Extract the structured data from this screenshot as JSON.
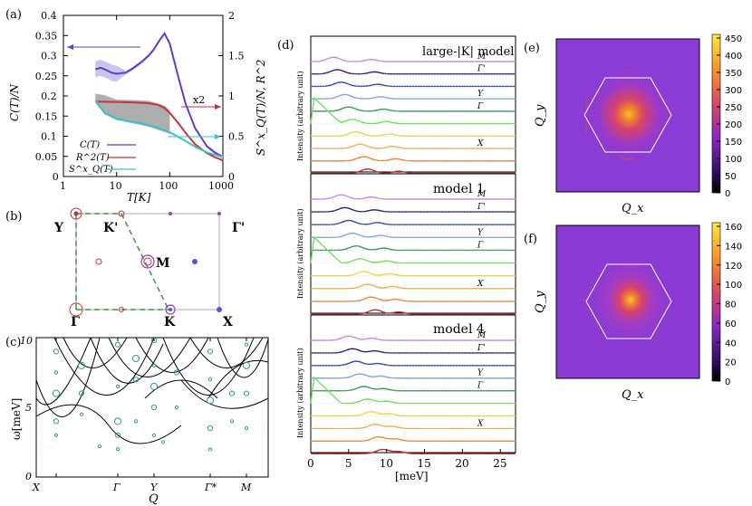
{
  "panel_labels": [
    "(a)",
    "(b)",
    "(c)",
    "(d)",
    "(e)",
    "(f)"
  ],
  "chart_data": [
    {
      "id": "a",
      "type": "line",
      "title": "",
      "xlabel": "T[K]",
      "ylabel_left": "C(T)/N",
      "ylabel_right": "S^x_Q(T)/N, R^2",
      "xscale": "log",
      "xlim": [
        1,
        1000
      ],
      "ylim_left": [
        0,
        0.4
      ],
      "ylim_right": [
        0,
        2
      ],
      "xticks": [
        "1",
        "10",
        "100",
        "1000"
      ],
      "yticks_left": [
        "0",
        "0.05",
        "0.1",
        "0.15",
        "0.2",
        "0.25",
        "0.3",
        "0.35",
        "0.4"
      ],
      "yticks_right": [
        "0",
        "0.5",
        "1",
        "1.5",
        "2"
      ],
      "annotation": "x2",
      "legend": [
        "C(T)",
        "R^2(T)",
        "S^x_Q(T)"
      ],
      "colors": {
        "C": "#5a3fd0",
        "R2": "#c8323c",
        "S": "#3cc2c8",
        "band": "#a0a0a0"
      },
      "series": [
        {
          "name": "C(T)",
          "axis": "left",
          "x": [
            4,
            5,
            6,
            8,
            10,
            15,
            20,
            30,
            40,
            50,
            60,
            70,
            80,
            100,
            150,
            200,
            300,
            500,
            700,
            1000
          ],
          "values": [
            0.266,
            0.27,
            0.266,
            0.258,
            0.255,
            0.258,
            0.268,
            0.285,
            0.3,
            0.315,
            0.332,
            0.345,
            0.355,
            0.33,
            0.24,
            0.18,
            0.12,
            0.075,
            0.06,
            0.048
          ]
        },
        {
          "name": "R^2(T)",
          "axis": "right",
          "x": [
            4,
            10,
            20,
            40,
            60,
            80,
            100,
            150,
            200,
            300,
            500,
            700,
            1000
          ],
          "values": [
            0.93,
            0.925,
            0.92,
            0.91,
            0.89,
            0.85,
            0.79,
            0.65,
            0.54,
            0.4,
            0.29,
            0.24,
            0.2
          ]
        },
        {
          "name": "S^x_Q(T)",
          "axis": "right",
          "x": [
            4,
            6,
            10,
            20,
            30,
            50,
            100,
            200,
            300,
            500,
            700,
            1000
          ],
          "values": [
            0.95,
            0.79,
            0.72,
            0.68,
            0.66,
            0.62,
            0.55,
            0.44,
            0.37,
            0.3,
            0.27,
            0.24
          ]
        }
      ]
    },
    {
      "id": "c",
      "type": "scatter",
      "xlabel": "Q",
      "ylabel": "ω[meV]",
      "ylim": [
        0,
        10
      ],
      "yticks": [
        "0",
        "5",
        "10"
      ],
      "xticks": [
        "X",
        "Γ",
        "Y",
        "Γ*",
        "M"
      ]
    },
    {
      "id": "d",
      "type": "line",
      "xlabel": "[meV]",
      "xlim": [
        0,
        27
      ],
      "xticks": [
        "0",
        "5",
        "10",
        "15",
        "20",
        "25"
      ],
      "ylabel": "Intensity (arbitrary unit)",
      "subpanels": [
        "large-|K| model",
        "model 1",
        "model 4"
      ],
      "curve_labels": [
        "M",
        "Γ'",
        "",
        "Y",
        "Γ",
        "",
        "",
        "X"
      ],
      "curve_colors": [
        "#c98be0",
        "#2c1f82",
        "#3445b8",
        "#7fa7e0",
        "#3a9a5c",
        "#6fe060",
        "#e8d84a",
        "#f0b050",
        "#e8893a",
        "#c02a28"
      ]
    },
    {
      "id": "e",
      "type": "heatmap",
      "xlabel": "Q_x",
      "ylabel": "Q_y",
      "colorbar_ticks": [
        "0",
        "50",
        "100",
        "150",
        "200",
        "250",
        "300",
        "350",
        "400",
        "450"
      ]
    },
    {
      "id": "f",
      "type": "heatmap",
      "xlabel": "Q_x",
      "ylabel": "Q_y",
      "colorbar_ticks": [
        "0",
        "20",
        "40",
        "60",
        "80",
        "100",
        "120",
        "140",
        "160"
      ]
    }
  ],
  "panel_b": {
    "point_labels": [
      "Y",
      "K'",
      "Γ'",
      "M",
      "Γ",
      "K",
      "X"
    ]
  }
}
